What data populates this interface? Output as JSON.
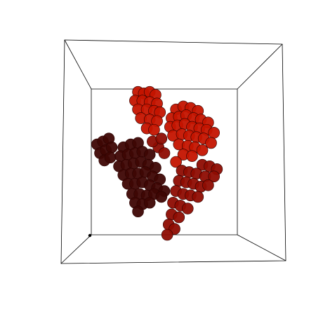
{
  "chart_data": {
    "type": "scatter3d",
    "xlim": [
      0,
      100
    ],
    "ylim": [
      0,
      100
    ],
    "series": [
      {
        "color": "#c41400",
        "points": [
          [
            32,
            98
          ],
          [
            36,
            97
          ],
          [
            40,
            98
          ],
          [
            44,
            96
          ],
          [
            30,
            92
          ],
          [
            35,
            92
          ],
          [
            40,
            91
          ],
          [
            45,
            90
          ],
          [
            32,
            86
          ],
          [
            38,
            86
          ],
          [
            43,
            85
          ],
          [
            47,
            84
          ],
          [
            34,
            80
          ],
          [
            40,
            79
          ],
          [
            45,
            78
          ],
          [
            38,
            73
          ],
          [
            43,
            72
          ],
          [
            58,
            86
          ],
          [
            63,
            88
          ],
          [
            68,
            87
          ],
          [
            73,
            85
          ],
          [
            55,
            80
          ],
          [
            60,
            81
          ],
          [
            65,
            82
          ],
          [
            70,
            80
          ],
          [
            75,
            79
          ],
          [
            80,
            77
          ],
          [
            54,
            74
          ],
          [
            59,
            75
          ],
          [
            64,
            76
          ],
          [
            69,
            74
          ],
          [
            74,
            73
          ],
          [
            79,
            72
          ],
          [
            84,
            70
          ],
          [
            56,
            68
          ],
          [
            62,
            69
          ],
          [
            67,
            68
          ],
          [
            72,
            67
          ],
          [
            77,
            66
          ],
          [
            82,
            63
          ],
          [
            60,
            62
          ],
          [
            66,
            61
          ],
          [
            71,
            60
          ],
          [
            76,
            58
          ],
          [
            63,
            55
          ],
          [
            69,
            54
          ],
          [
            58,
            50
          ]
        ]
      },
      {
        "color": "#8e0c02",
        "points": [
          [
            76,
            48
          ],
          [
            81,
            47
          ],
          [
            86,
            45
          ],
          [
            62,
            44
          ],
          [
            67,
            43
          ],
          [
            72,
            42
          ],
          [
            78,
            40
          ],
          [
            84,
            40
          ],
          [
            60,
            37
          ],
          [
            65,
            36
          ],
          [
            70,
            35
          ],
          [
            75,
            33
          ],
          [
            80,
            34
          ],
          [
            58,
            30
          ],
          [
            63,
            28
          ],
          [
            68,
            27
          ],
          [
            73,
            26
          ],
          [
            56,
            22
          ],
          [
            61,
            20
          ],
          [
            66,
            18
          ],
          [
            55,
            14
          ],
          [
            60,
            12
          ],
          [
            53,
            7
          ],
          [
            57,
            4
          ],
          [
            52,
            0
          ],
          [
            46,
            60
          ],
          [
            50,
            56
          ],
          [
            42,
            64
          ],
          [
            48,
            66
          ]
        ]
      },
      {
        "color": "#3e0604",
        "points": [
          [
            4,
            62
          ],
          [
            8,
            64
          ],
          [
            12,
            66
          ],
          [
            6,
            56
          ],
          [
            10,
            58
          ],
          [
            14,
            60
          ],
          [
            9,
            51
          ],
          [
            13,
            53
          ],
          [
            22,
            60
          ],
          [
            27,
            62
          ],
          [
            32,
            63
          ],
          [
            20,
            54
          ],
          [
            25,
            55
          ],
          [
            30,
            56
          ],
          [
            35,
            57
          ],
          [
            40,
            55
          ],
          [
            19,
            47
          ],
          [
            24,
            48
          ],
          [
            29,
            49
          ],
          [
            34,
            50
          ],
          [
            39,
            48
          ],
          [
            44,
            46
          ],
          [
            22,
            41
          ],
          [
            27,
            42
          ],
          [
            32,
            42
          ],
          [
            37,
            43
          ],
          [
            42,
            40
          ],
          [
            47,
            38
          ],
          [
            25,
            35
          ],
          [
            30,
            35
          ],
          [
            35,
            36
          ],
          [
            40,
            34
          ],
          [
            45,
            32
          ],
          [
            50,
            30
          ],
          [
            28,
            28
          ],
          [
            33,
            28
          ],
          [
            38,
            27
          ],
          [
            43,
            28
          ],
          [
            48,
            26
          ],
          [
            30,
            22
          ],
          [
            35,
            21
          ],
          [
            40,
            22
          ],
          [
            32,
            16
          ]
        ]
      }
    ]
  }
}
